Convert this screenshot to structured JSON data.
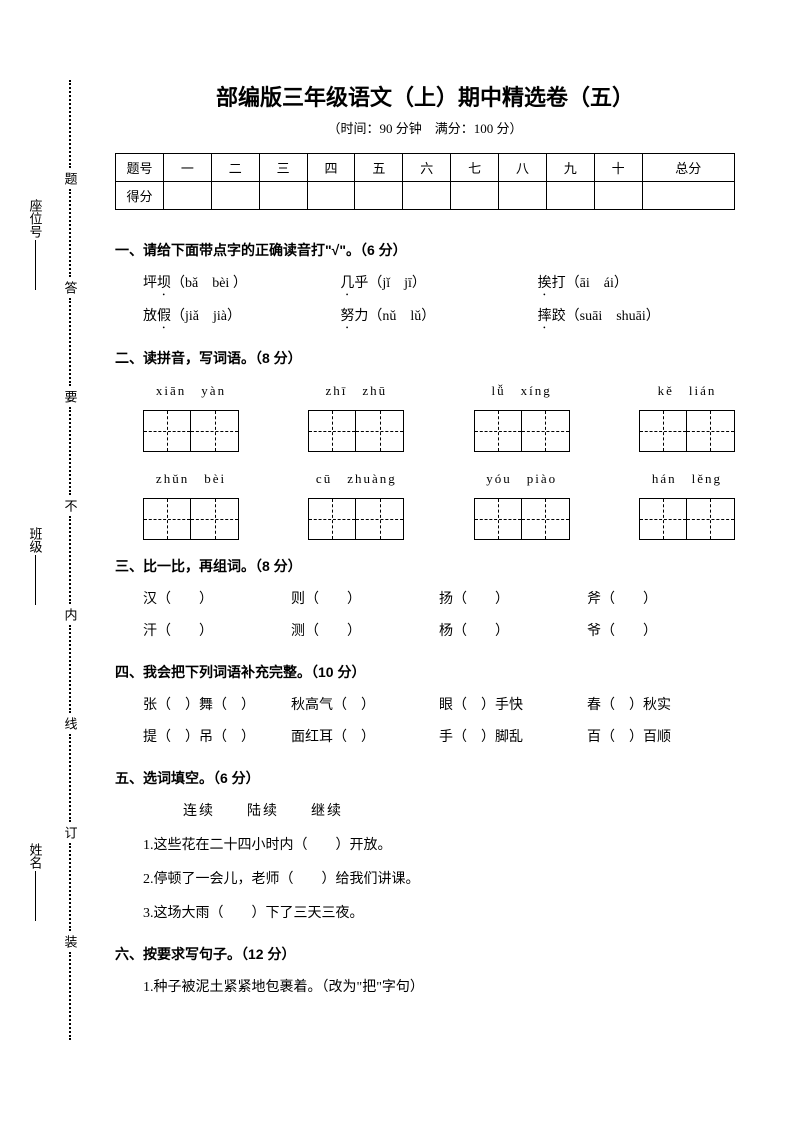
{
  "page": {
    "title": "部编版三年级语文（上）期中精选卷（五）",
    "subtitle": "（时间：90 分钟　满分：100 分）",
    "background_color": "#ffffff",
    "text_color": "#000000"
  },
  "side_strip": {
    "chars": [
      "题",
      "答",
      "要",
      "不",
      "内",
      "线",
      "订",
      "装"
    ]
  },
  "side_labels": [
    {
      "text": "姓名"
    },
    {
      "text": "班级"
    },
    {
      "text": "座位号"
    }
  ],
  "score_table": {
    "header_label": "题号",
    "score_label": "得分",
    "columns": [
      "一",
      "二",
      "三",
      "四",
      "五",
      "六",
      "七",
      "八",
      "九",
      "十",
      "总分"
    ]
  },
  "sections": {
    "s1": {
      "title": "一、请给下面带点字的正确读音打\"√\"。（6 分）",
      "items": [
        {
          "word": "坪坝",
          "dot": "坝",
          "pinyin": "（bǎ　bèi ）"
        },
        {
          "word": "几乎",
          "dot": "几",
          "pinyin": "（jǐ　jī）"
        },
        {
          "word": "挨打",
          "dot": "挨",
          "pinyin": "（āi　ái）"
        },
        {
          "word": "放假",
          "dot": "假",
          "pinyin": "（jiǎ　jià）"
        },
        {
          "word": "努力",
          "dot": "努",
          "pinyin": "（nǔ　lǔ）"
        },
        {
          "word": "摔跤",
          "dot": "摔",
          "pinyin": "（suāi　shuāi）"
        }
      ]
    },
    "s2": {
      "title": "二、读拼音，写词语。（8 分）",
      "rows": [
        [
          {
            "pinyin": "xiān　yàn"
          },
          {
            "pinyin": "zhī　zhū"
          },
          {
            "pinyin": "lǚ　xíng"
          },
          {
            "pinyin": "kě　lián"
          }
        ],
        [
          {
            "pinyin": "zhǔn　bèi"
          },
          {
            "pinyin": "cū　zhuàng"
          },
          {
            "pinyin": "yóu　piào"
          },
          {
            "pinyin": "hán　lěng"
          }
        ]
      ]
    },
    "s3": {
      "title": "三、比一比，再组词。（8 分）",
      "rows": [
        [
          "汉（　　）",
          "则（　　）",
          "扬（　　）",
          "斧（　　）"
        ],
        [
          "汗（　　）",
          "测（　　）",
          "杨（　　）",
          "爷（　　）"
        ]
      ]
    },
    "s4": {
      "title": "四、我会把下列词语补充完整。（10 分）",
      "rows": [
        [
          "张（　）舞（　）",
          "秋高气（　）",
          "眼（　）手快",
          "春（　）秋实"
        ],
        [
          "提（　）吊（　）",
          "面红耳（　）",
          "手（　）脚乱",
          "百（　）百顺"
        ]
      ]
    },
    "s5": {
      "title": "五、选词填空。（6 分）",
      "words": "连续　　陆续　　继续",
      "items": [
        "1.这些花在二十四小时内（　　）开放。",
        "2.停顿了一会儿，老师（　　）给我们讲课。",
        "3.这场大雨（　　）下了三天三夜。"
      ]
    },
    "s6": {
      "title": "六、按要求写句子。（12 分）",
      "items": [
        "1.种子被泥土紧紧地包裹着。（改为\"把\"字句）"
      ]
    }
  }
}
